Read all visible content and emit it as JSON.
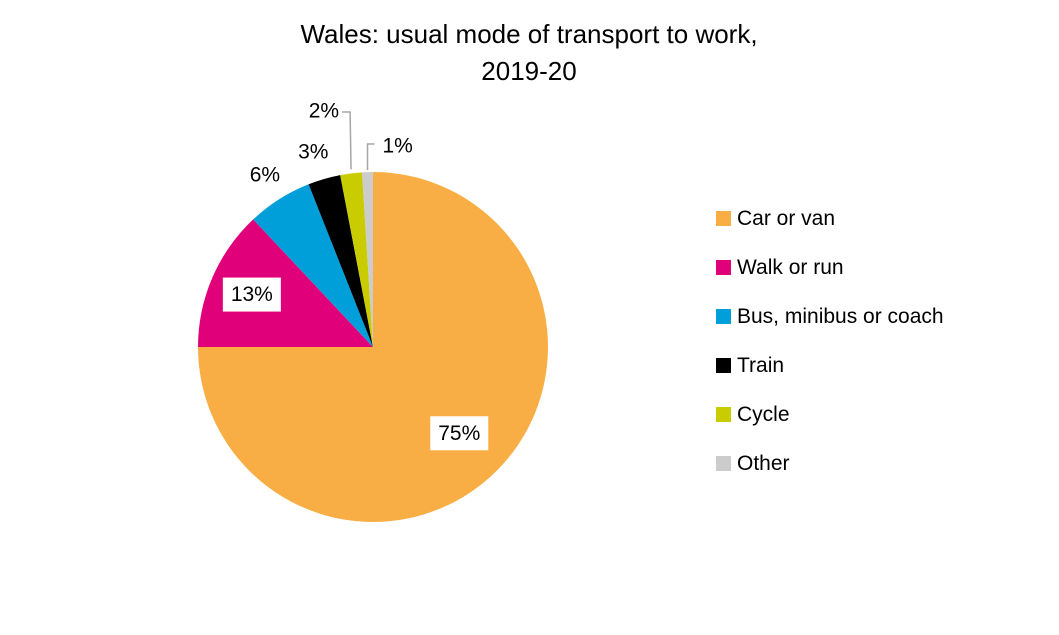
{
  "chart_data": {
    "type": "pie",
    "title": "Wales: usual mode of transport to work,",
    "subtitle": "2019-20",
    "legend_position": "right",
    "categories": [
      "Car or van",
      "Walk or run",
      "Bus, minibus or coach",
      "Train",
      "Cycle",
      "Other"
    ],
    "values": [
      75,
      13,
      6,
      3,
      2,
      1
    ],
    "labels": [
      "75%",
      "13%",
      "6%",
      "3%",
      "2%",
      "1%"
    ],
    "colors": [
      "#F9AE45",
      "#E0007A",
      "#009FDA",
      "#000000",
      "#C9CD00",
      "#CCCCCC"
    ]
  }
}
